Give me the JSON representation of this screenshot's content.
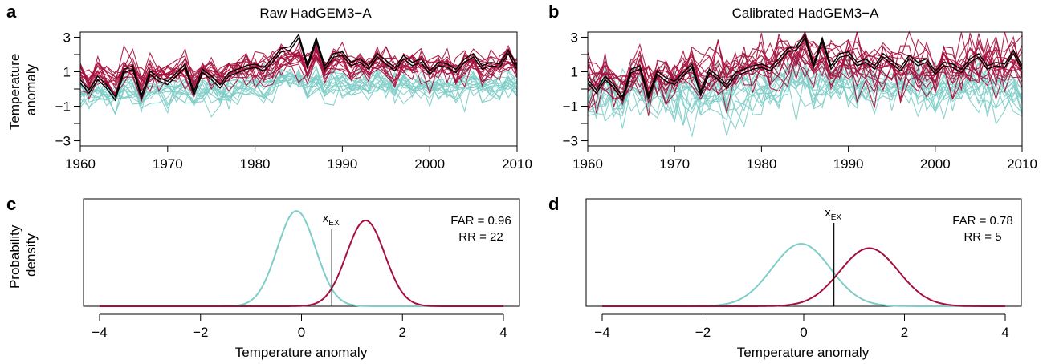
{
  "colors": {
    "natural": "#7ecdc8",
    "actual": "#a50f3c",
    "observed": "#000000"
  },
  "chart_data": [
    {
      "panel": "a",
      "type": "line",
      "title": "Raw HadGEM3−A",
      "ylabel": "Temperature anomaly",
      "xlabel": "",
      "xlim": [
        1960,
        2010
      ],
      "ylim": [
        -3.3,
        3.3
      ],
      "xticks": [
        1960,
        1970,
        1980,
        1990,
        2000,
        2010
      ],
      "yticks_labeled": [
        -3,
        -1,
        1,
        3
      ],
      "yticks": [
        -3,
        -2,
        -1,
        0,
        1,
        2,
        3
      ],
      "ensemble": {
        "members": 15,
        "natural_shift": 0.0,
        "actual_shift": 1.2,
        "noise": 0.45
      },
      "observed": {
        "x": [
          1960,
          1961,
          1962,
          1963,
          1964,
          1965,
          1966,
          1967,
          1968,
          1969,
          1970,
          1971,
          1972,
          1973,
          1974,
          1975,
          1976,
          1977,
          1978,
          1979,
          1980,
          1981,
          1982,
          1983,
          1984,
          1985,
          1986,
          1987,
          1988,
          1989,
          1990,
          1991,
          1992,
          1993,
          1994,
          1995,
          1996,
          1997,
          1998,
          1999,
          2000,
          2001,
          2002,
          2003,
          2004,
          2005,
          2006,
          2007,
          2008,
          2009,
          2010
        ],
        "y": [
          0.4,
          -0.2,
          0.6,
          0.1,
          -0.6,
          1.0,
          1.2,
          -0.5,
          0.9,
          0.5,
          0.3,
          0.8,
          1.3,
          -0.3,
          1.0,
          0.6,
          0.1,
          0.8,
          1.0,
          1.2,
          1.3,
          1.1,
          1.6,
          2.2,
          2.3,
          3.0,
          1.3,
          2.8,
          1.2,
          1.9,
          2.0,
          1.4,
          1.6,
          1.2,
          1.9,
          1.5,
          1.1,
          1.8,
          1.4,
          1.6,
          0.9,
          1.4,
          1.3,
          1.0,
          1.6,
          1.9,
          1.2,
          1.4,
          1.3,
          2.1,
          1.2
        ]
      }
    },
    {
      "panel": "b",
      "type": "line",
      "title": "Calibrated HadGEM3−A",
      "ylabel": "",
      "xlabel": "",
      "xlim": [
        1960,
        2010
      ],
      "ylim": [
        -3.3,
        3.3
      ],
      "xticks": [
        1960,
        1970,
        1980,
        1990,
        2000,
        2010
      ],
      "yticks_labeled": [
        -3,
        -1,
        1,
        3
      ],
      "yticks": [
        -3,
        -2,
        -1,
        0,
        1,
        2,
        3
      ],
      "ensemble": {
        "members": 15,
        "natural_shift": -0.1,
        "actual_shift": 1.1,
        "noise": 0.75
      },
      "observed": {
        "x": [
          1960,
          1961,
          1962,
          1963,
          1964,
          1965,
          1966,
          1967,
          1968,
          1969,
          1970,
          1971,
          1972,
          1973,
          1974,
          1975,
          1976,
          1977,
          1978,
          1979,
          1980,
          1981,
          1982,
          1983,
          1984,
          1985,
          1986,
          1987,
          1988,
          1989,
          1990,
          1991,
          1992,
          1993,
          1994,
          1995,
          1996,
          1997,
          1998,
          1999,
          2000,
          2001,
          2002,
          2003,
          2004,
          2005,
          2006,
          2007,
          2008,
          2009,
          2010
        ],
        "y": [
          0.4,
          -0.2,
          0.6,
          0.1,
          -0.6,
          1.0,
          1.2,
          -0.5,
          0.9,
          0.5,
          0.3,
          0.8,
          1.3,
          -0.3,
          1.0,
          0.6,
          0.1,
          0.8,
          1.0,
          1.2,
          1.3,
          1.1,
          1.6,
          2.2,
          2.3,
          3.0,
          1.3,
          2.8,
          1.2,
          1.9,
          2.0,
          1.4,
          1.6,
          1.2,
          1.9,
          1.5,
          1.1,
          1.8,
          1.4,
          1.6,
          0.9,
          1.4,
          1.3,
          1.0,
          1.6,
          1.9,
          1.2,
          1.4,
          1.3,
          2.1,
          1.2
        ]
      }
    },
    {
      "panel": "c",
      "type": "line",
      "title": "",
      "ylabel": "Probability density",
      "xlabel": "Temperature anomaly",
      "xlim": [
        -4,
        4
      ],
      "xticks": [
        -4,
        -2,
        0,
        2,
        4
      ],
      "series": [
        {
          "role": "natural",
          "mean": -0.1,
          "sd": 0.38
        },
        {
          "role": "actual",
          "mean": 1.27,
          "sd": 0.38,
          "peak_ratio": 0.9
        }
      ],
      "threshold": {
        "label": "x",
        "subscript": "EX",
        "value": 0.6
      },
      "annotations": [
        "FAR = 0.96",
        "RR = 22"
      ]
    },
    {
      "panel": "d",
      "type": "line",
      "title": "",
      "ylabel": "",
      "xlabel": "Temperature anomaly",
      "xlim": [
        -4,
        4
      ],
      "xticks": [
        -4,
        -2,
        0,
        2,
        4
      ],
      "series": [
        {
          "role": "natural",
          "mean": -0.05,
          "sd": 0.58
        },
        {
          "role": "actual",
          "mean": 1.3,
          "sd": 0.58,
          "peak_ratio": 0.93
        }
      ],
      "threshold": {
        "label": "x",
        "subscript": "EX",
        "value": 0.6
      },
      "annotations": [
        "FAR = 0.78",
        "RR = 5"
      ]
    }
  ]
}
